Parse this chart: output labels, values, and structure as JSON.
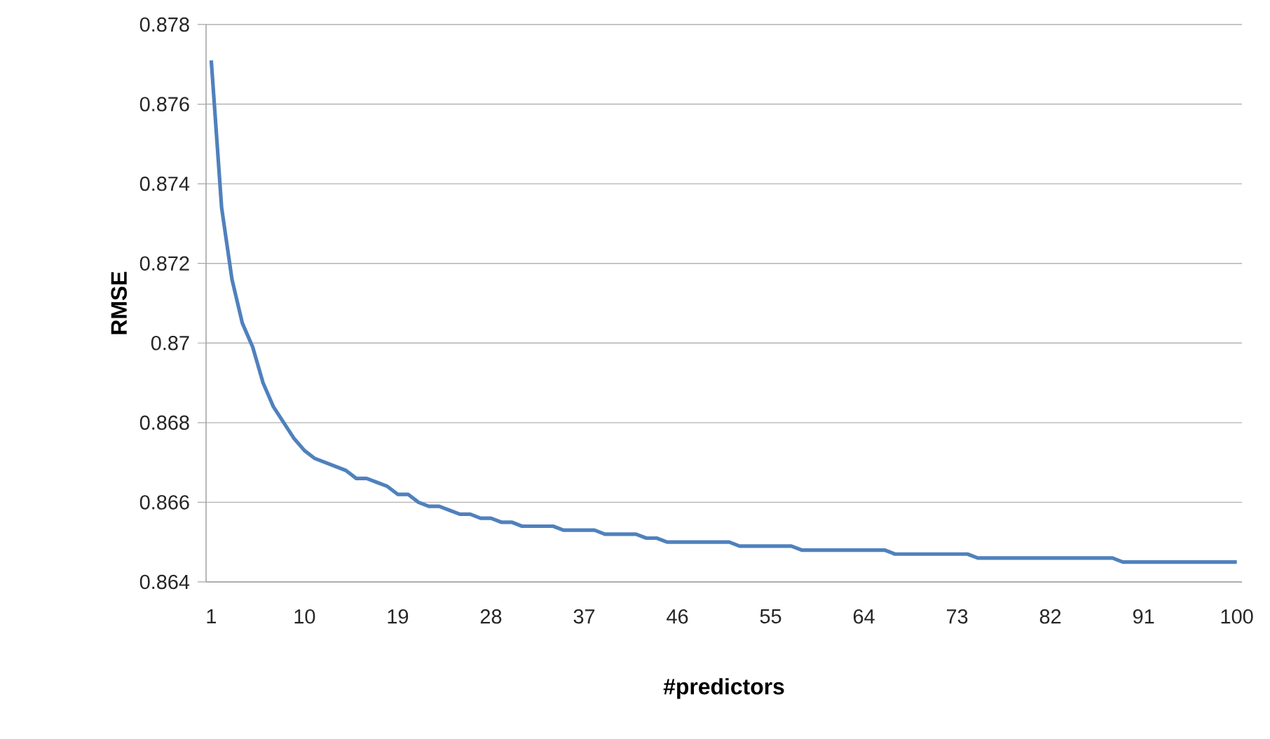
{
  "chart_data": {
    "type": "line",
    "xlabel": "#predictors",
    "ylabel": "RMSE",
    "categories": [
      "1",
      null,
      null,
      null,
      null,
      null,
      null,
      null,
      null,
      "10",
      null,
      null,
      null,
      null,
      null,
      null,
      null,
      null,
      "19",
      null,
      null,
      null,
      null,
      null,
      null,
      null,
      null,
      "28",
      null,
      null,
      null,
      null,
      null,
      null,
      null,
      null,
      "37",
      null,
      null,
      null,
      null,
      null,
      null,
      null,
      null,
      "46",
      null,
      null,
      null,
      null,
      null,
      null,
      null,
      null,
      "55",
      null,
      null,
      null,
      null,
      null,
      null,
      null,
      null,
      "64",
      null,
      null,
      null,
      null,
      null,
      null,
      null,
      null,
      "73",
      null,
      null,
      null,
      null,
      null,
      null,
      null,
      null,
      "82",
      null,
      null,
      null,
      null,
      null,
      null,
      null,
      null,
      "91",
      null,
      null,
      null,
      null,
      null,
      null,
      null,
      null,
      "100"
    ],
    "series": [
      {
        "color": "#4f81bd",
        "values": [
          0.8771,
          0.8734,
          0.8716,
          0.8705,
          0.8699,
          0.869,
          0.8684,
          0.868,
          0.8676,
          0.8673,
          0.8671,
          0.867,
          0.8669,
          0.8668,
          0.8666,
          0.8666,
          0.8665,
          0.8664,
          0.8662,
          0.8662,
          0.866,
          0.8659,
          0.8659,
          0.8658,
          0.8657,
          0.8657,
          0.8656,
          0.8656,
          0.8655,
          0.8655,
          0.8654,
          0.8654,
          0.8654,
          0.8654,
          0.8653,
          0.8653,
          0.8653,
          0.8653,
          0.8652,
          0.8652,
          0.8652,
          0.8652,
          0.8651,
          0.8651,
          0.865,
          0.865,
          0.865,
          0.865,
          0.865,
          0.865,
          0.865,
          0.8649,
          0.8649,
          0.8649,
          0.8649,
          0.8649,
          0.8649,
          0.8648,
          0.8648,
          0.8648,
          0.8648,
          0.8648,
          0.8648,
          0.8648,
          0.8648,
          0.8648,
          0.8647,
          0.8647,
          0.8647,
          0.8647,
          0.8647,
          0.8647,
          0.8647,
          0.8647,
          0.8646,
          0.8646,
          0.8646,
          0.8646,
          0.8646,
          0.8646,
          0.8646,
          0.8646,
          0.8646,
          0.8646,
          0.8646,
          0.8646,
          0.8646,
          0.8646,
          0.8645,
          0.8645,
          0.8645,
          0.8645,
          0.8645,
          0.8645,
          0.8645,
          0.8645,
          0.8645,
          0.8645,
          0.8645,
          0.8645
        ]
      }
    ],
    "ylim": [
      0.864,
      0.878
    ],
    "yticks": [
      0.864,
      0.866,
      0.868,
      0.87,
      0.872,
      0.874,
      0.876,
      0.878
    ],
    "grid": "y",
    "legend": false,
    "marker": "none",
    "line_style": "solid"
  }
}
